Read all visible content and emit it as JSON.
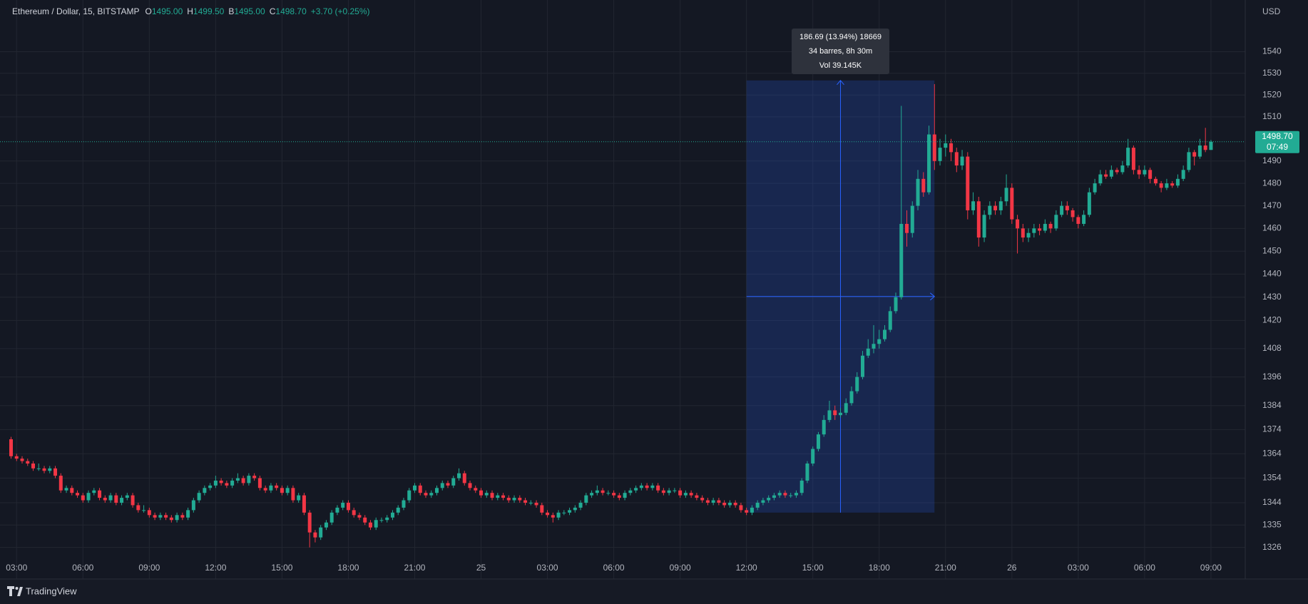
{
  "chart_data": {
    "type": "candlestick",
    "log_scale": true,
    "grid": true,
    "header": {
      "symbol": "Ethereum / Dollar, 15, BITSTAMP",
      "o_label": "O",
      "o": "1495.00",
      "h_label": "H",
      "h": "1499.50",
      "b_label": "B",
      "b": "1495.00",
      "c_label": "C",
      "c": "1498.70",
      "change": "+3.70 (+0.25%)"
    },
    "currency": "USD",
    "brand": "TradingView",
    "up_color": "#22ab94",
    "down_color": "#f23645",
    "last_price": {
      "value": 1498.7,
      "label": "1498.70"
    },
    "countdown": "07:49",
    "measure": {
      "from_index": 133,
      "to_index": 167,
      "low": 1340,
      "high": 1526.69,
      "line1": "186.69 (13.94%) 18669",
      "line2": "34 barres, 8h 30m",
      "line3": "Vol 39.145K"
    },
    "xlim": [
      -2,
      223.2
    ],
    "ylim": [
      1313.4,
      1564.2
    ],
    "yticks": [
      1326,
      1335,
      1344,
      1354,
      1364,
      1374,
      1384,
      1396,
      1408,
      1420,
      1430,
      1440,
      1450,
      1460,
      1470,
      1480,
      1490,
      1510,
      1520,
      1530,
      1540
    ],
    "xticks": [
      {
        "value": 1,
        "label": "03:00"
      },
      {
        "value": 13,
        "label": "06:00"
      },
      {
        "value": 25,
        "label": "09:00"
      },
      {
        "value": 37,
        "label": "12:00"
      },
      {
        "value": 49,
        "label": "15:00"
      },
      {
        "value": 61,
        "label": "18:00"
      },
      {
        "value": 73,
        "label": "21:00"
      },
      {
        "value": 85,
        "label": "25"
      },
      {
        "value": 97,
        "label": "03:00"
      },
      {
        "value": 109,
        "label": "06:00"
      },
      {
        "value": 121,
        "label": "09:00"
      },
      {
        "value": 133,
        "label": "12:00"
      },
      {
        "value": 145,
        "label": "15:00"
      },
      {
        "value": 157,
        "label": "18:00"
      },
      {
        "value": 169,
        "label": "21:00"
      },
      {
        "value": 181,
        "label": "26"
      },
      {
        "value": 193,
        "label": "03:00"
      },
      {
        "value": 205,
        "label": "06:00"
      },
      {
        "value": 217,
        "label": "09:00"
      }
    ],
    "ohlc": [
      [
        1370,
        1371,
        1362,
        1363
      ],
      [
        1363,
        1364,
        1361,
        1362
      ],
      [
        1362,
        1363,
        1360,
        1361
      ],
      [
        1361,
        1362,
        1359,
        1360
      ],
      [
        1360,
        1361,
        1357,
        1358
      ],
      [
        1358,
        1360,
        1357,
        1358
      ],
      [
        1358,
        1359,
        1356,
        1357
      ],
      [
        1357,
        1359,
        1356,
        1358
      ],
      [
        1358,
        1359,
        1354,
        1355
      ],
      [
        1355,
        1356,
        1348,
        1349
      ],
      [
        1349,
        1351,
        1348,
        1350
      ],
      [
        1350,
        1351,
        1347,
        1348
      ],
      [
        1348,
        1349,
        1346,
        1347
      ],
      [
        1347,
        1348,
        1344,
        1345
      ],
      [
        1345,
        1349,
        1344,
        1348
      ],
      [
        1348,
        1350,
        1347,
        1349
      ],
      [
        1349,
        1350,
        1345,
        1346
      ],
      [
        1346,
        1347,
        1344,
        1345
      ],
      [
        1345,
        1348,
        1344,
        1347
      ],
      [
        1347,
        1348,
        1343,
        1344
      ],
      [
        1344,
        1347,
        1343,
        1346
      ],
      [
        1346,
        1348,
        1345,
        1347
      ],
      [
        1347,
        1348,
        1342,
        1343
      ],
      [
        1343,
        1344,
        1340,
        1341
      ],
      [
        1341,
        1343,
        1340,
        1341
      ],
      [
        1341,
        1342,
        1338,
        1339
      ],
      [
        1339,
        1340,
        1337,
        1338
      ],
      [
        1338,
        1340,
        1337,
        1339
      ],
      [
        1339,
        1340,
        1337,
        1338
      ],
      [
        1338,
        1339,
        1336,
        1337
      ],
      [
        1337,
        1340,
        1336,
        1339
      ],
      [
        1339,
        1340,
        1337,
        1338
      ],
      [
        1338,
        1342,
        1337,
        1341
      ],
      [
        1341,
        1346,
        1340,
        1345
      ],
      [
        1345,
        1349,
        1344,
        1348
      ],
      [
        1348,
        1351,
        1347,
        1350
      ],
      [
        1350,
        1352,
        1349,
        1351
      ],
      [
        1351,
        1355,
        1350,
        1353
      ],
      [
        1353,
        1354,
        1351,
        1352
      ],
      [
        1352,
        1353,
        1350,
        1351
      ],
      [
        1351,
        1354,
        1350,
        1353
      ],
      [
        1353,
        1356,
        1352,
        1354
      ],
      [
        1354,
        1355,
        1351,
        1352
      ],
      [
        1352,
        1356,
        1351,
        1355
      ],
      [
        1355,
        1356,
        1353,
        1354
      ],
      [
        1354,
        1355,
        1349,
        1350
      ],
      [
        1350,
        1351,
        1348,
        1349
      ],
      [
        1349,
        1352,
        1348,
        1351
      ],
      [
        1351,
        1352,
        1349,
        1350
      ],
      [
        1350,
        1351,
        1347,
        1348
      ],
      [
        1348,
        1351,
        1347,
        1350
      ],
      [
        1350,
        1351,
        1344,
        1345
      ],
      [
        1345,
        1348,
        1344,
        1347
      ],
      [
        1347,
        1348,
        1339,
        1340
      ],
      [
        1340,
        1341,
        1326,
        1332
      ],
      [
        1332,
        1333,
        1328,
        1330
      ],
      [
        1330,
        1335,
        1329,
        1334
      ],
      [
        1334,
        1337,
        1333,
        1336
      ],
      [
        1336,
        1341,
        1335,
        1340
      ],
      [
        1340,
        1343,
        1339,
        1342
      ],
      [
        1342,
        1345,
        1341,
        1344
      ],
      [
        1344,
        1345,
        1340,
        1341
      ],
      [
        1341,
        1342,
        1338,
        1339
      ],
      [
        1339,
        1340,
        1337,
        1338
      ],
      [
        1338,
        1339,
        1335,
        1336
      ],
      [
        1336,
        1337,
        1333,
        1334
      ],
      [
        1334,
        1338,
        1333,
        1337
      ],
      [
        1337,
        1338,
        1336,
        1337
      ],
      [
        1337,
        1339,
        1336,
        1338
      ],
      [
        1338,
        1341,
        1337,
        1340
      ],
      [
        1340,
        1343,
        1339,
        1342
      ],
      [
        1342,
        1346,
        1341,
        1345
      ],
      [
        1345,
        1350,
        1344,
        1349
      ],
      [
        1349,
        1352,
        1348,
        1351
      ],
      [
        1351,
        1352,
        1347,
        1348
      ],
      [
        1348,
        1349,
        1346,
        1347
      ],
      [
        1347,
        1349,
        1346,
        1348
      ],
      [
        1348,
        1351,
        1347,
        1350
      ],
      [
        1350,
        1353,
        1349,
        1352
      ],
      [
        1352,
        1353,
        1350,
        1351
      ],
      [
        1351,
        1355,
        1350,
        1354
      ],
      [
        1354,
        1358,
        1353,
        1356
      ],
      [
        1356,
        1357,
        1351,
        1352
      ],
      [
        1352,
        1353,
        1349,
        1350
      ],
      [
        1350,
        1351,
        1348,
        1349
      ],
      [
        1349,
        1350,
        1346,
        1347
      ],
      [
        1347,
        1349,
        1346,
        1348
      ],
      [
        1348,
        1349,
        1345,
        1346
      ],
      [
        1346,
        1348,
        1345,
        1347
      ],
      [
        1347,
        1348,
        1345,
        1346
      ],
      [
        1346,
        1347,
        1344,
        1345
      ],
      [
        1345,
        1347,
        1344,
        1346
      ],
      [
        1346,
        1347,
        1344,
        1345
      ],
      [
        1345,
        1346,
        1343,
        1344
      ],
      [
        1344,
        1345,
        1343,
        1344
      ],
      [
        1344,
        1345,
        1342,
        1343
      ],
      [
        1343,
        1344,
        1339,
        1340
      ],
      [
        1340,
        1341,
        1338,
        1339
      ],
      [
        1339,
        1340,
        1336,
        1338
      ],
      [
        1338,
        1341,
        1337,
        1340
      ],
      [
        1340,
        1341,
        1339,
        1340
      ],
      [
        1340,
        1342,
        1339,
        1341
      ],
      [
        1341,
        1343,
        1340,
        1342
      ],
      [
        1342,
        1345,
        1341,
        1344
      ],
      [
        1344,
        1348,
        1343,
        1347
      ],
      [
        1347,
        1349,
        1346,
        1348
      ],
      [
        1348,
        1351,
        1347,
        1349
      ],
      [
        1349,
        1350,
        1347,
        1348
      ],
      [
        1348,
        1349,
        1347,
        1348
      ],
      [
        1348,
        1349,
        1346,
        1347
      ],
      [
        1347,
        1348,
        1345,
        1346
      ],
      [
        1346,
        1349,
        1345,
        1348
      ],
      [
        1348,
        1350,
        1347,
        1349
      ],
      [
        1349,
        1351,
        1348,
        1350
      ],
      [
        1350,
        1352,
        1349,
        1351
      ],
      [
        1351,
        1352,
        1349,
        1350
      ],
      [
        1350,
        1352,
        1349,
        1351
      ],
      [
        1351,
        1352,
        1348,
        1349
      ],
      [
        1349,
        1350,
        1347,
        1348
      ],
      [
        1348,
        1350,
        1347,
        1349
      ],
      [
        1349,
        1350,
        1348,
        1349
      ],
      [
        1349,
        1350,
        1346,
        1347
      ],
      [
        1347,
        1349,
        1346,
        1348
      ],
      [
        1348,
        1349,
        1346,
        1347
      ],
      [
        1347,
        1348,
        1345,
        1346
      ],
      [
        1346,
        1347,
        1344,
        1345
      ],
      [
        1345,
        1346,
        1343,
        1344
      ],
      [
        1344,
        1346,
        1343,
        1345
      ],
      [
        1345,
        1346,
        1343,
        1344
      ],
      [
        1344,
        1345,
        1342,
        1343
      ],
      [
        1343,
        1345,
        1342,
        1344
      ],
      [
        1344,
        1345,
        1342,
        1343
      ],
      [
        1343,
        1344,
        1340,
        1341
      ],
      [
        1341,
        1342,
        1339,
        1340
      ],
      [
        1340,
        1343,
        1339,
        1342
      ],
      [
        1342,
        1345,
        1341,
        1344
      ],
      [
        1344,
        1346,
        1343,
        1345
      ],
      [
        1345,
        1347,
        1344,
        1346
      ],
      [
        1346,
        1348,
        1345,
        1347
      ],
      [
        1347,
        1349,
        1346,
        1348
      ],
      [
        1348,
        1349,
        1346,
        1347
      ],
      [
        1347,
        1348,
        1346,
        1347
      ],
      [
        1347,
        1349,
        1346,
        1348
      ],
      [
        1348,
        1354,
        1347,
        1353
      ],
      [
        1353,
        1361,
        1352,
        1360
      ],
      [
        1360,
        1367,
        1359,
        1366
      ],
      [
        1366,
        1373,
        1365,
        1372
      ],
      [
        1372,
        1380,
        1371,
        1378
      ],
      [
        1378,
        1386,
        1377,
        1382
      ],
      [
        1382,
        1384,
        1378,
        1380
      ],
      [
        1380,
        1383,
        1379,
        1381
      ],
      [
        1381,
        1387,
        1380,
        1385
      ],
      [
        1385,
        1392,
        1384,
        1390
      ],
      [
        1390,
        1398,
        1389,
        1396
      ],
      [
        1396,
        1407,
        1395,
        1405
      ],
      [
        1405,
        1412,
        1404,
        1408
      ],
      [
        1408,
        1418,
        1406,
        1410
      ],
      [
        1410,
        1416,
        1408,
        1412
      ],
      [
        1412,
        1418,
        1411,
        1416
      ],
      [
        1416,
        1426,
        1415,
        1424
      ],
      [
        1424,
        1432,
        1423,
        1430
      ],
      [
        1430,
        1515,
        1429,
        1462
      ],
      [
        1462,
        1468,
        1452,
        1458
      ],
      [
        1458,
        1472,
        1456,
        1470
      ],
      [
        1470,
        1486,
        1468,
        1482
      ],
      [
        1482,
        1485,
        1474,
        1476
      ],
      [
        1476,
        1506,
        1475,
        1502
      ],
      [
        1502,
        1525,
        1486,
        1490
      ],
      [
        1490,
        1500,
        1488,
        1496
      ],
      [
        1496,
        1502,
        1492,
        1498
      ],
      [
        1498,
        1500,
        1490,
        1494
      ],
      [
        1494,
        1496,
        1485,
        1488
      ],
      [
        1488,
        1495,
        1486,
        1492
      ],
      [
        1492,
        1494,
        1464,
        1468
      ],
      [
        1468,
        1476,
        1466,
        1472
      ],
      [
        1472,
        1474,
        1452,
        1456
      ],
      [
        1456,
        1468,
        1454,
        1466
      ],
      [
        1466,
        1472,
        1464,
        1470
      ],
      [
        1470,
        1472,
        1466,
        1468
      ],
      [
        1468,
        1474,
        1466,
        1472
      ],
      [
        1472,
        1484,
        1470,
        1478
      ],
      [
        1478,
        1480,
        1462,
        1464
      ],
      [
        1464,
        1466,
        1449,
        1460
      ],
      [
        1460,
        1462,
        1454,
        1456
      ],
      [
        1456,
        1460,
        1454,
        1458
      ],
      [
        1458,
        1462,
        1456,
        1460
      ],
      [
        1460,
        1462,
        1457,
        1459
      ],
      [
        1459,
        1464,
        1458,
        1462
      ],
      [
        1462,
        1463,
        1458,
        1460
      ],
      [
        1460,
        1468,
        1459,
        1466
      ],
      [
        1466,
        1472,
        1465,
        1470
      ],
      [
        1470,
        1472,
        1466,
        1468
      ],
      [
        1468,
        1469,
        1463,
        1465
      ],
      [
        1465,
        1466,
        1460,
        1462
      ],
      [
        1462,
        1468,
        1461,
        1466
      ],
      [
        1466,
        1478,
        1465,
        1476
      ],
      [
        1476,
        1482,
        1475,
        1480
      ],
      [
        1480,
        1486,
        1479,
        1484
      ],
      [
        1484,
        1486,
        1482,
        1483
      ],
      [
        1483,
        1488,
        1482,
        1486
      ],
      [
        1486,
        1487,
        1484,
        1485
      ],
      [
        1485,
        1490,
        1484,
        1488
      ],
      [
        1488,
        1500,
        1487,
        1496
      ],
      [
        1496,
        1497,
        1484,
        1486
      ],
      [
        1486,
        1488,
        1482,
        1484
      ],
      [
        1484,
        1488,
        1483,
        1486
      ],
      [
        1486,
        1487,
        1480,
        1482
      ],
      [
        1482,
        1483,
        1479,
        1480
      ],
      [
        1480,
        1481,
        1476,
        1478
      ],
      [
        1478,
        1482,
        1477,
        1480
      ],
      [
        1480,
        1481,
        1478,
        1479
      ],
      [
        1479,
        1484,
        1478,
        1482
      ],
      [
        1482,
        1488,
        1481,
        1486
      ],
      [
        1486,
        1496,
        1485,
        1494
      ],
      [
        1494,
        1495,
        1488,
        1492
      ],
      [
        1492,
        1500,
        1491,
        1497
      ],
      [
        1497,
        1505,
        1494,
        1495
      ],
      [
        1495,
        1499.5,
        1495,
        1498.7
      ]
    ]
  }
}
